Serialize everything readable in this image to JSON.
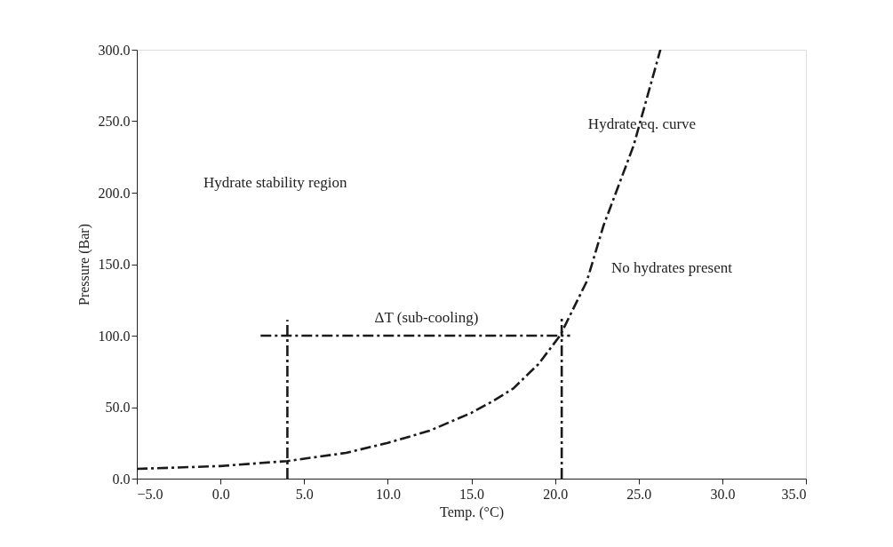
{
  "chart_data": {
    "type": "line",
    "xlabel": "Temp. (°C)",
    "ylabel": "Pressure (Bar)",
    "xlim": [
      -5,
      35
    ],
    "xticks": [
      {
        "value": -5,
        "label": "−5.0"
      },
      {
        "value": 0,
        "label": "0.0"
      },
      {
        "value": 5,
        "label": "5.0"
      },
      {
        "value": 10,
        "label": "10.0"
      },
      {
        "value": 15,
        "label": "15.0"
      },
      {
        "value": 20,
        "label": "20.0"
      },
      {
        "value": 25,
        "label": "25.0"
      },
      {
        "value": 30,
        "label": "30.0"
      },
      {
        "value": 35,
        "label": "35.0"
      }
    ],
    "ylim": [
      0,
      300
    ],
    "yticks": [
      {
        "value": 0,
        "label": "0.0"
      },
      {
        "value": 50,
        "label": "50.0"
      },
      {
        "value": 100,
        "label": "100.0"
      },
      {
        "value": 150,
        "label": "150.0"
      },
      {
        "value": 200,
        "label": "200.0"
      },
      {
        "value": 250,
        "label": "250.0"
      },
      {
        "value": 300,
        "label": "300.0"
      }
    ],
    "grid": false,
    "marker": "none",
    "series": [
      {
        "color": "#1a1a1a",
        "line_style": "dashed",
        "x": [
          -5,
          0,
          4,
          7.5,
          10,
          12.5,
          15,
          16.25,
          17.5,
          19,
          20.3,
          21.9,
          22.9,
          24.7,
          26.3
        ],
        "values": [
          6.8,
          8.8,
          12.3,
          18,
          25,
          33.5,
          46,
          54,
          63,
          80,
          100,
          138,
          177,
          233,
          300
        ]
      },
      {
        "color": "#1a1a1a",
        "line_style": "dashed",
        "x": [
          4,
          4
        ],
        "values": [
          0,
          111
        ]
      },
      {
        "color": "#1a1a1a",
        "line_style": "dashed",
        "x": [
          20.4,
          20.4
        ],
        "values": [
          0,
          112
        ]
      },
      {
        "color": "#1a1a1a",
        "line_style": "dashed",
        "x": [
          2.4,
          20.9
        ],
        "values": [
          100,
          100
        ]
      }
    ],
    "annotations": [
      "Hydrate stability region",
      "No hydrates present",
      "ΔT (sub-cooling)",
      {
        "text": "Hydrate eq. curve",
        "x": 25.2,
        "y": 248
      }
    ]
  }
}
